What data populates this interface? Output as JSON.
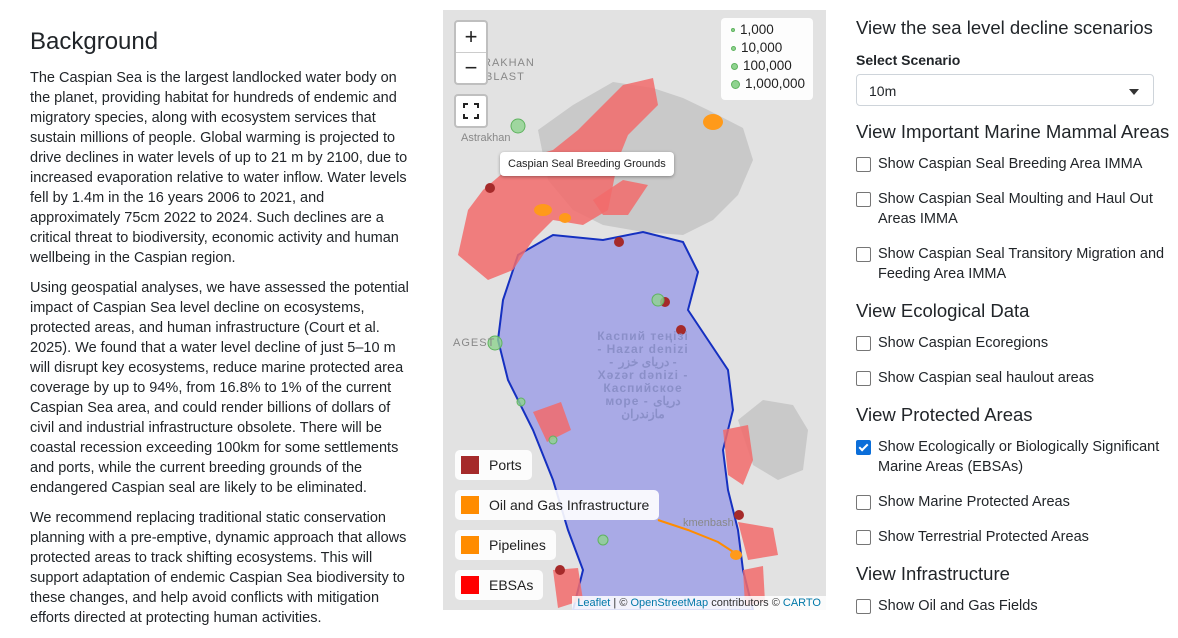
{
  "background": {
    "title": "Background",
    "paragraphs": [
      "The Caspian Sea is the largest landlocked water body on the planet, providing habitat for hundreds of endemic and migratory species, along with ecosystem services that sustain millions of people. Global warming is projected to drive declines in water levels of up to 21 m by 2100, due to increased evaporation relative to water inflow. Water levels fell by 1.4m in the 16 years 2006 to 2021, and approximately 75cm 2022 to 2024. Such declines are a critical threat to biodiversity, economic activity and human wellbeing in the Caspian region.",
      "Using geospatial analyses, we have assessed the potential impact of Caspian Sea level decline on ecosystems, protected areas, and human infrastructure (Court et al. 2025). We found that a water level decline of just 5–10 m will disrupt key ecosystems, reduce marine protected area coverage by up to 94%, from 16.8% to 1% of the current Caspian Sea area, and could render billions of dollars of civil and industrial infrastructure obsolete. There will be coastal recession exceeding 100km for some settlements and ports, while the current breeding grounds of the endangered Caspian seal are likely to be eliminated.",
      "We recommend replacing traditional static conservation planning with a pre-emptive, dynamic approach that allows protected areas to track shifting ecosystems. This will support adaptation of endemic Caspian Sea biodiversity to these changes, and help avoid conflicts with mitigation efforts directed at protecting human activities."
    ]
  },
  "map": {
    "zoom_in": "+",
    "zoom_out": "−",
    "size_legend": [
      "1,000",
      "10,000",
      "100,000",
      "1,000,000"
    ],
    "popup": "Caspian Seal Breeding Grounds",
    "place_labels": [
      "RAKHAN",
      "BLAST",
      "Astrakhan",
      "AGEST",
      "kmenbash"
    ],
    "sea_label": "Каспий теңізі - Hazar denizi - دریای خزر - Xəzər dənizi - Каспийское море - دریای مازندران",
    "legend": [
      {
        "label": "Ports",
        "color": "#a52a2a"
      },
      {
        "label": "Oil and Gas Infrastructure",
        "color": "#ff8c00"
      },
      {
        "label": "Pipelines",
        "color": "#ff8c00"
      },
      {
        "label": "EBSAs",
        "color": "#ff0000"
      }
    ],
    "attribution": {
      "leaflet": "Leaflet",
      "sep": " | © ",
      "osm": "OpenStreetMap",
      "contrib": " contributors © ",
      "carto": "CARTO"
    }
  },
  "panel": {
    "scenario_title": "View the sea level decline scenarios",
    "select_label": "Select Scenario",
    "scenario_value": "10m",
    "mammal_title": "View Important Marine Mammal Areas",
    "mammal_items": [
      {
        "label": "Show Caspian Seal Breeding Area IMMA",
        "checked": false
      },
      {
        "label": "Show Caspian Seal Moulting and Haul Out Areas IMMA",
        "checked": false
      },
      {
        "label": "Show Caspian Seal Transitory Migration and Feeding Area IMMA",
        "checked": false
      }
    ],
    "eco_title": "View Ecological Data",
    "eco_items": [
      {
        "label": "Show Caspian Ecoregions",
        "checked": false
      },
      {
        "label": "Show Caspian seal haulout areas",
        "checked": false
      }
    ],
    "protected_title": "View Protected Areas",
    "protected_items": [
      {
        "label": "Show Ecologically or Biologically Significant Marine Areas (EBSAs)",
        "checked": true
      },
      {
        "label": "Show Marine Protected Areas",
        "checked": false
      },
      {
        "label": "Show Terrestrial Protected Areas",
        "checked": false
      }
    ],
    "infra_title": "View Infrastructure",
    "infra_items": [
      {
        "label": "Show Oil and Gas Fields",
        "checked": false
      }
    ]
  }
}
